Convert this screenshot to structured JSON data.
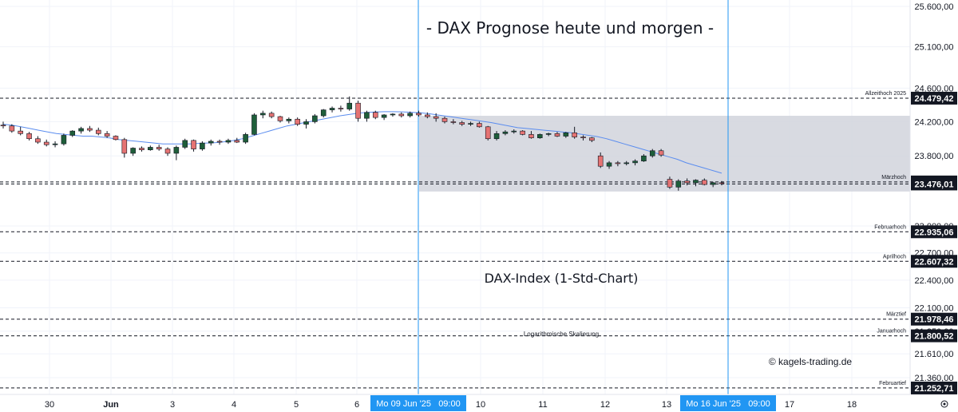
{
  "chart_data": {
    "type": "candlestick",
    "title": "- DAX Prognose heute und morgen -",
    "subtitle": "DAX-Index (1-Std-Chart)",
    "scale_note": "Logarithmische Skalierung",
    "copyright": "© kagels-trading.de",
    "y_scale": "log",
    "ylim": [
      21200,
      25700
    ],
    "grid": true,
    "y_ticks": [
      {
        "value": 25600,
        "label": "25.600,00"
      },
      {
        "value": 25100,
        "label": "25.100,00"
      },
      {
        "value": 24600,
        "label": "24.600,00"
      },
      {
        "value": 24200,
        "label": "24.200,00"
      },
      {
        "value": 23800,
        "label": "23.800,00"
      },
      {
        "value": 23000,
        "label": "23.000,00"
      },
      {
        "value": 22700,
        "label": "22.700,00"
      },
      {
        "value": 22400,
        "label": "22.400,00"
      },
      {
        "value": 22100,
        "label": "22.100,00"
      },
      {
        "value": 21850,
        "label": "21.850,00"
      },
      {
        "value": 21610,
        "label": "21.610,00"
      },
      {
        "value": 21360,
        "label": "21.360,00"
      }
    ],
    "x_ticks": [
      {
        "label": "30",
        "bold": false
      },
      {
        "label": "Jun",
        "bold": true
      },
      {
        "label": "3",
        "bold": false
      },
      {
        "label": "4",
        "bold": false
      },
      {
        "label": "5",
        "bold": false
      },
      {
        "label": "6",
        "bold": false
      },
      {
        "label": "10",
        "bold": false
      },
      {
        "label": "11",
        "bold": false
      },
      {
        "label": "12",
        "bold": false
      },
      {
        "label": "13",
        "bold": false
      },
      {
        "label": "17",
        "bold": false
      },
      {
        "label": "18",
        "bold": false
      }
    ],
    "x_markers": [
      {
        "label": "Mo 09 Jun '25   09:00"
      },
      {
        "label": "Mo 16 Jun '25   09:00"
      }
    ],
    "range_box": {
      "high": 24270,
      "low": 23390
    },
    "levels": [
      {
        "name": "Allzeithoch 2025",
        "value": 24479.42,
        "label": "24.479,42",
        "tag_color": "#131722"
      },
      {
        "name": "Märzhoch",
        "value": 23499.36,
        "label": "23.499,36",
        "tag_color": "#131722"
      },
      {
        "name": "",
        "value": 23476.01,
        "label": "23.476,01",
        "tag_color": "#131722"
      },
      {
        "name": "Februarhoch",
        "value": 22935.06,
        "label": "22.935,06",
        "tag_color": "#131722"
      },
      {
        "name": "Aprilhoch",
        "value": 22607.32,
        "label": "22.607,32",
        "tag_color": "#131722"
      },
      {
        "name": "Märztief",
        "value": 21978.46,
        "label": "21.978,46",
        "tag_color": "#131722"
      },
      {
        "name": "Januarhoch",
        "value": 21800.52,
        "label": "21.800,52",
        "tag_color": "#131722"
      },
      {
        "name": "Februartief",
        "value": 21252.71,
        "label": "21.252,71",
        "tag_color": "#131722"
      }
    ],
    "candles": [
      [
        24160,
        24200,
        24120,
        24150
      ],
      [
        24150,
        24170,
        24070,
        24090
      ],
      [
        24090,
        24140,
        24040,
        24060
      ],
      [
        24060,
        24080,
        23980,
        24000
      ],
      [
        24000,
        24030,
        23940,
        23960
      ],
      [
        23960,
        23990,
        23910,
        23930
      ],
      [
        23930,
        23970,
        23900,
        23940
      ],
      [
        23940,
        24060,
        23920,
        24040
      ],
      [
        24040,
        24100,
        24020,
        24090
      ],
      [
        24090,
        24140,
        24060,
        24120
      ],
      [
        24120,
        24150,
        24080,
        24100
      ],
      [
        24100,
        24130,
        24040,
        24060
      ],
      [
        24060,
        24090,
        24010,
        24030
      ],
      [
        24030,
        24040,
        23980,
        23990
      ],
      [
        23990,
        24010,
        23780,
        23830
      ],
      [
        23830,
        23900,
        23800,
        23890
      ],
      [
        23890,
        23910,
        23850,
        23870
      ],
      [
        23870,
        23920,
        23860,
        23900
      ],
      [
        23900,
        23930,
        23860,
        23880
      ],
      [
        23880,
        23900,
        23800,
        23830
      ],
      [
        23830,
        23920,
        23750,
        23900
      ],
      [
        23900,
        24000,
        23880,
        23980
      ],
      [
        23980,
        23990,
        23850,
        23880
      ],
      [
        23880,
        23970,
        23860,
        23950
      ],
      [
        23950,
        23990,
        23920,
        23970
      ],
      [
        23970,
        23990,
        23930,
        23960
      ],
      [
        23960,
        24000,
        23940,
        23980
      ],
      [
        23980,
        24010,
        23950,
        23960
      ],
      [
        23960,
        24070,
        23940,
        24050
      ],
      [
        24050,
        24300,
        24040,
        24280
      ],
      [
        24280,
        24330,
        24240,
        24300
      ],
      [
        24300,
        24320,
        24240,
        24260
      ],
      [
        24260,
        24270,
        24190,
        24210
      ],
      [
        24210,
        24250,
        24180,
        24230
      ],
      [
        24230,
        24250,
        24150,
        24170
      ],
      [
        24170,
        24230,
        24120,
        24200
      ],
      [
        24200,
        24290,
        24180,
        24270
      ],
      [
        24270,
        24350,
        24250,
        24340
      ],
      [
        24340,
        24380,
        24310,
        24360
      ],
      [
        24360,
        24390,
        24320,
        24350
      ],
      [
        24350,
        24500,
        24330,
        24420
      ],
      [
        24420,
        24450,
        24200,
        24240
      ],
      [
        24240,
        24330,
        24200,
        24310
      ],
      [
        24310,
        24330,
        24230,
        24250
      ],
      [
        24250,
        24290,
        24220,
        24280
      ],
      [
        24280,
        24300,
        24260,
        24290
      ],
      [
        24290,
        24310,
        24250,
        24270
      ],
      [
        24270,
        24320,
        24250,
        24300
      ],
      [
        24300,
        24330,
        24260,
        24280
      ],
      [
        24280,
        24310,
        24240,
        24260
      ],
      [
        24260,
        24300,
        24200,
        24240
      ],
      [
        24240,
        24260,
        24180,
        24200
      ],
      [
        24200,
        24230,
        24170,
        24190
      ],
      [
        24190,
        24210,
        24150,
        24170
      ],
      [
        24170,
        24200,
        24150,
        24180
      ],
      [
        24180,
        24200,
        24130,
        24140
      ],
      [
        24140,
        24150,
        23980,
        24000
      ],
      [
        24000,
        24090,
        23980,
        24060
      ],
      [
        24060,
        24100,
        24040,
        24080
      ],
      [
        24080,
        24110,
        24060,
        24090
      ],
      [
        24090,
        24100,
        24040,
        24050
      ],
      [
        24050,
        24090,
        24000,
        24010
      ],
      [
        24010,
        24060,
        24000,
        24050
      ],
      [
        24050,
        24070,
        24030,
        24060
      ],
      [
        24060,
        24080,
        24020,
        24030
      ],
      [
        24030,
        24080,
        24010,
        24070
      ],
      [
        24070,
        24140,
        24000,
        24020
      ],
      [
        24020,
        24040,
        23980,
        24010
      ],
      [
        24010,
        24020,
        23960,
        23980
      ],
      [
        23800,
        23840,
        23660,
        23680
      ],
      [
        23680,
        23740,
        23650,
        23720
      ],
      [
        23720,
        23740,
        23680,
        23710
      ],
      [
        23710,
        23740,
        23690,
        23720
      ],
      [
        23720,
        23760,
        23690,
        23740
      ],
      [
        23740,
        23820,
        23730,
        23800
      ],
      [
        23800,
        23880,
        23780,
        23860
      ],
      [
        23860,
        23880,
        23790,
        23810
      ],
      [
        23530,
        23560,
        23420,
        23440
      ],
      [
        23440,
        23530,
        23400,
        23510
      ],
      [
        23510,
        23540,
        23460,
        23490
      ],
      [
        23490,
        23530,
        23450,
        23520
      ],
      [
        23520,
        23540,
        23460,
        23470
      ],
      [
        23470,
        23500,
        23440,
        23490
      ],
      [
        23490,
        23510,
        23460,
        23480
      ]
    ],
    "moving_average": [
      24170,
      24160,
      24140,
      24120,
      24100,
      24080,
      24060,
      24050,
      24040,
      24030,
      24030,
      24020,
      24010,
      23990,
      23980,
      23970,
      23960,
      23950,
      23940,
      23940,
      23940,
      23940,
      23945,
      23950,
      23955,
      23965,
      23980,
      24000,
      24030,
      24060,
      24090,
      24120,
      24150,
      24170,
      24190,
      24210,
      24230,
      24250,
      24270,
      24285,
      24300,
      24310,
      24315,
      24318,
      24318,
      24316,
      24312,
      24305,
      24295,
      24280,
      24265,
      24250,
      24235,
      24220,
      24205,
      24190,
      24170,
      24150,
      24130,
      24120,
      24110,
      24100,
      24090,
      24080,
      24070,
      24055,
      24040,
      24025,
      24000,
      23970,
      23940,
      23910,
      23880,
      23850,
      23820,
      23790,
      23760,
      23720,
      23690,
      23660,
      23630,
      23600
    ]
  }
}
